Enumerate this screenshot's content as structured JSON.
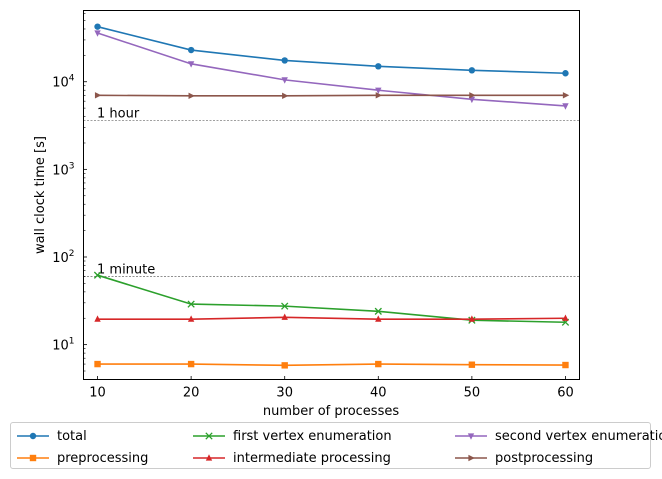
{
  "chart_data": {
    "type": "line",
    "xlabel": "number of processes",
    "ylabel": "wall clock time [s]",
    "yscale": "log",
    "xlim": [
      8.5,
      61.5
    ],
    "ylim": [
      4,
      65000
    ],
    "x": [
      10,
      20,
      30,
      40,
      50,
      60
    ],
    "x_ticks": [
      "10",
      "20",
      "30",
      "40",
      "50",
      "60"
    ],
    "y_ticks": [
      {
        "label": "10",
        "sup": "1",
        "value": 10
      },
      {
        "label": "10",
        "sup": "2",
        "value": 100
      },
      {
        "label": "10",
        "sup": "3",
        "value": 1000
      },
      {
        "label": "10",
        "sup": "4",
        "value": 10000
      }
    ],
    "grid": false,
    "legend_position": "below plot",
    "series": [
      {
        "name": "total",
        "color": "#1f77b4",
        "marker": "circle",
        "values": [
          42500,
          23000,
          17500,
          15000,
          13500,
          12500
        ]
      },
      {
        "name": "preprocessing",
        "color": "#ff7f0e",
        "marker": "square",
        "values": [
          6.0,
          6.0,
          5.8,
          6.0,
          5.9,
          5.85
        ]
      },
      {
        "name": "first vertex enumeration",
        "color": "#2ca02c",
        "marker": "x",
        "values": [
          62,
          29,
          27.5,
          24,
          19,
          18
        ]
      },
      {
        "name": "intermediate processing",
        "color": "#d62728",
        "marker": "triangle-up",
        "values": [
          19.5,
          19.5,
          20.5,
          19.5,
          19.5,
          20
        ]
      },
      {
        "name": "second vertex enumeration",
        "color": "#9467bd",
        "marker": "triangle-down",
        "values": [
          36000,
          16000,
          10500,
          8000,
          6300,
          5300
        ]
      },
      {
        "name": "postprocessing",
        "color": "#8c564b",
        "marker": "triangle-right",
        "values": [
          7000,
          6900,
          6900,
          7000,
          7000,
          7000
        ]
      }
    ],
    "reference_lines": [
      {
        "label": "1 hour",
        "value": 3600
      },
      {
        "label": "1 minute",
        "value": 60
      }
    ]
  }
}
